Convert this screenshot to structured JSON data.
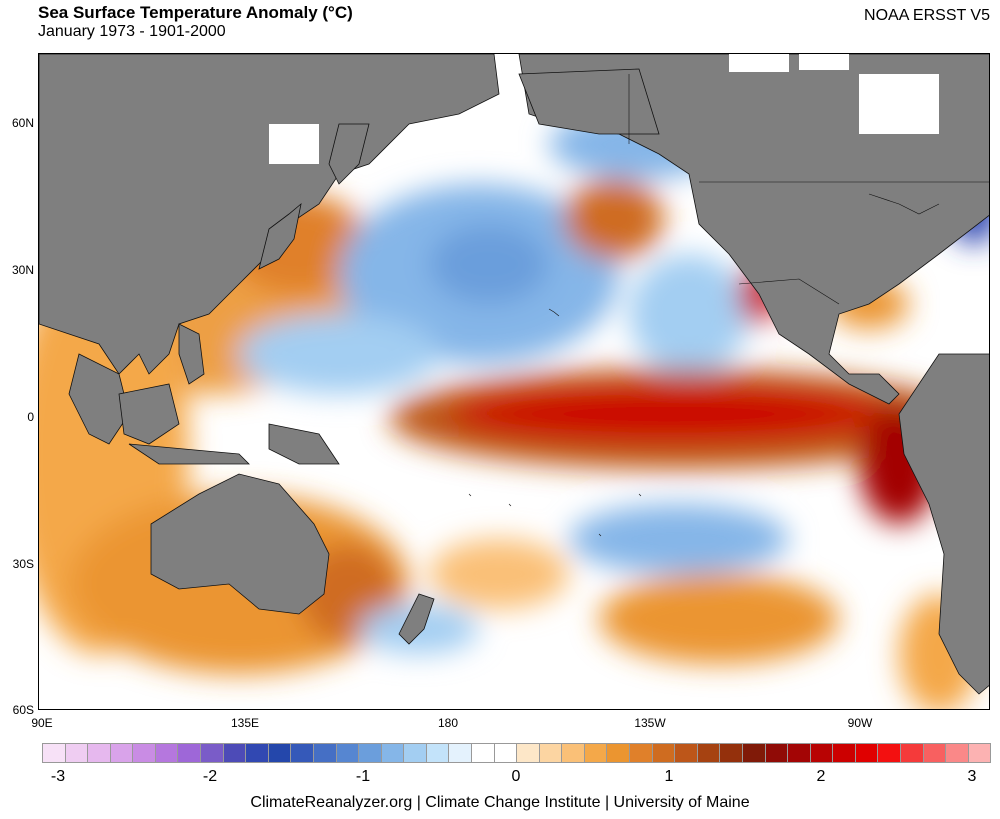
{
  "header": {
    "title": "Sea Surface Temperature Anomaly (°C)",
    "subtitle": "January 1973 - 1901-2000",
    "source": "NOAA ERSST V5"
  },
  "map": {
    "lat_labels": [
      "60N",
      "30N",
      "0",
      "30S",
      "60S"
    ],
    "lon_labels": [
      "90E",
      "135E",
      "180",
      "135W",
      "90W"
    ],
    "land_color": "#7f7f7f",
    "ocean_base_color": "#ffffff"
  },
  "colorbar": {
    "colors": [
      "#f7e1f7",
      "#efcdf2",
      "#e6b8ee",
      "#d9a3ea",
      "#c98ce4",
      "#b577de",
      "#9e67d8",
      "#7a5cc8",
      "#4d4bb7",
      "#3148b2",
      "#2447ab",
      "#3559b9",
      "#456fc5",
      "#5686d1",
      "#6b9edc",
      "#85b6e8",
      "#a3cef2",
      "#c3e3fa",
      "#e4f2fd",
      "#ffffff",
      "#ffffff",
      "#fde7c8",
      "#fcd5a2",
      "#fac077",
      "#f4a849",
      "#eb9530",
      "#e0802a",
      "#cf6c20",
      "#bd5619",
      "#a64211",
      "#94300c",
      "#801a08",
      "#900b06",
      "#a30505",
      "#b80303",
      "#cc0000",
      "#e00000",
      "#f31010",
      "#f53a3a",
      "#f86060",
      "#fa8888",
      "#fcb2b2"
    ],
    "tick_labels": [
      "-3",
      "-2",
      "-1",
      "0",
      "1",
      "2",
      "3"
    ]
  },
  "footer": {
    "credit": "ClimateReanalyzer.org | Climate Change Institute | University of Maine"
  }
}
